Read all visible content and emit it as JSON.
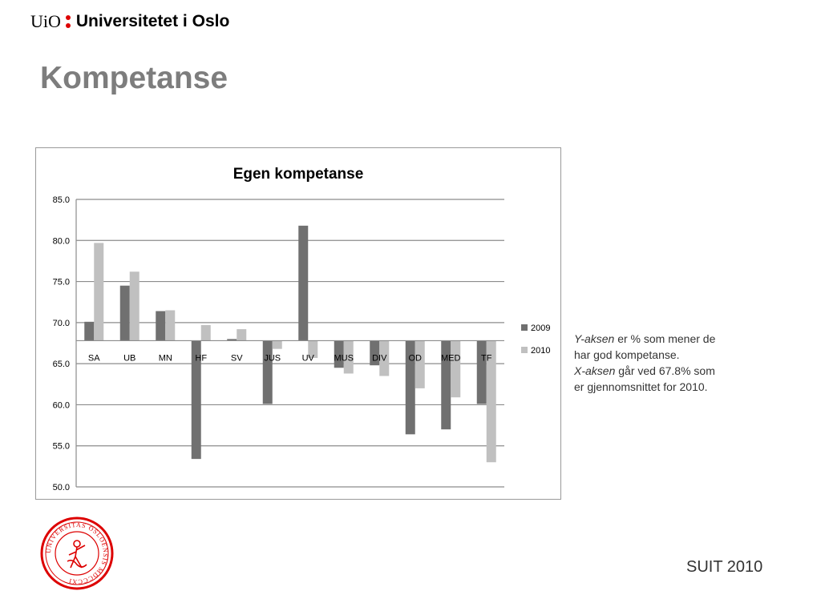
{
  "header": {
    "logo_mark": "UiO",
    "university_name": "Universitetet i Oslo"
  },
  "slide": {
    "title": "Kompetanse",
    "footer": "SUIT 2010"
  },
  "annotation": {
    "line1_italic": "Y-aksen",
    "line1_rest": " er % som mener de har god kompetanse.",
    "line2_italic": "X-aksen",
    "line2_rest": " går ved 67.8% som er gjennomsnittet for 2010."
  },
  "seal": {
    "text": "UNIVERSITAS OSLOENSIS MDCCCXI"
  },
  "colors": {
    "series_2009": "#707070",
    "series_2010": "#c0c0c0",
    "title_grey": "#7d7d7d",
    "seal_red": "#dd0000"
  },
  "chart_data": {
    "type": "bar",
    "title": "Egen kompetanse",
    "categories": [
      "SA",
      "UB",
      "MN",
      "HF",
      "SV",
      "JUS",
      "UV",
      "MUS",
      "DIV",
      "OD",
      "MED",
      "TF"
    ],
    "series": [
      {
        "name": "2009",
        "values": [
          70.1,
          74.5,
          71.4,
          53.4,
          68.0,
          60.1,
          81.8,
          64.5,
          64.8,
          56.4,
          57.0,
          60.1
        ]
      },
      {
        "name": "2010",
        "values": [
          79.7,
          76.2,
          71.5,
          69.7,
          69.2,
          66.8,
          65.7,
          63.8,
          63.5,
          62.0,
          60.9,
          53.0
        ]
      }
    ],
    "baseline": 67.8,
    "ylim": [
      50,
      85
    ],
    "yticks": [
      "50.0",
      "55.0",
      "60.0",
      "65.0",
      "70.0",
      "75.0",
      "80.0",
      "85.0"
    ],
    "grid": true,
    "legend_position": "right"
  }
}
